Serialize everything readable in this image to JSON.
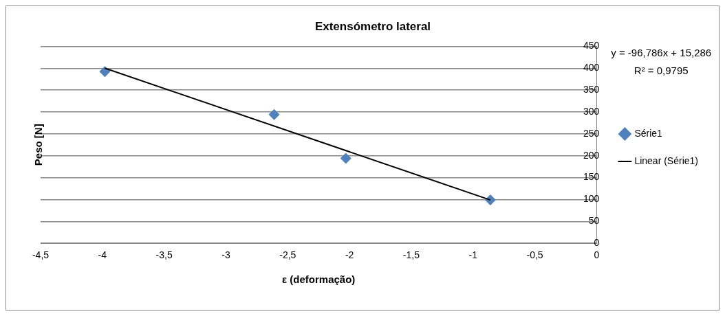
{
  "chart_data": {
    "type": "scatter",
    "title": "Extensómetro lateral",
    "xlabel": "ε (deformação)",
    "ylabel": "Peso [N]",
    "annotations": [
      "y = -96,786x + 15,286",
      "R² = 0,9795"
    ],
    "x": [
      -3.98,
      -2.61,
      -2.03,
      -0.86
    ],
    "series": [
      {
        "name": "Série1",
        "color": "#4f81bd",
        "marker": "diamond",
        "values": [
          392,
          294,
          194,
          99
        ]
      },
      {
        "name": "Linear (Série1)",
        "type": "line",
        "color": "#000000",
        "marker": "none",
        "x": [
          -3.98,
          -0.86
        ],
        "values": [
          400,
          99
        ]
      }
    ],
    "xlim": [
      -4.5,
      0
    ],
    "xticks": [
      {
        "value": -4.5,
        "label": "-4,5"
      },
      -4,
      {
        "value": -3.5,
        "label": "-3,5"
      },
      -3,
      {
        "value": -2.5,
        "label": "-2,5"
      },
      -2,
      {
        "value": -1.5,
        "label": "-1,5"
      },
      -1,
      {
        "value": -0.5,
        "label": "-0,5"
      },
      0
    ],
    "ylim": [
      0,
      450
    ],
    "yticks": [
      0,
      50,
      100,
      150,
      200,
      250,
      300,
      350,
      400,
      450
    ],
    "grid": "y",
    "legend": "right"
  }
}
